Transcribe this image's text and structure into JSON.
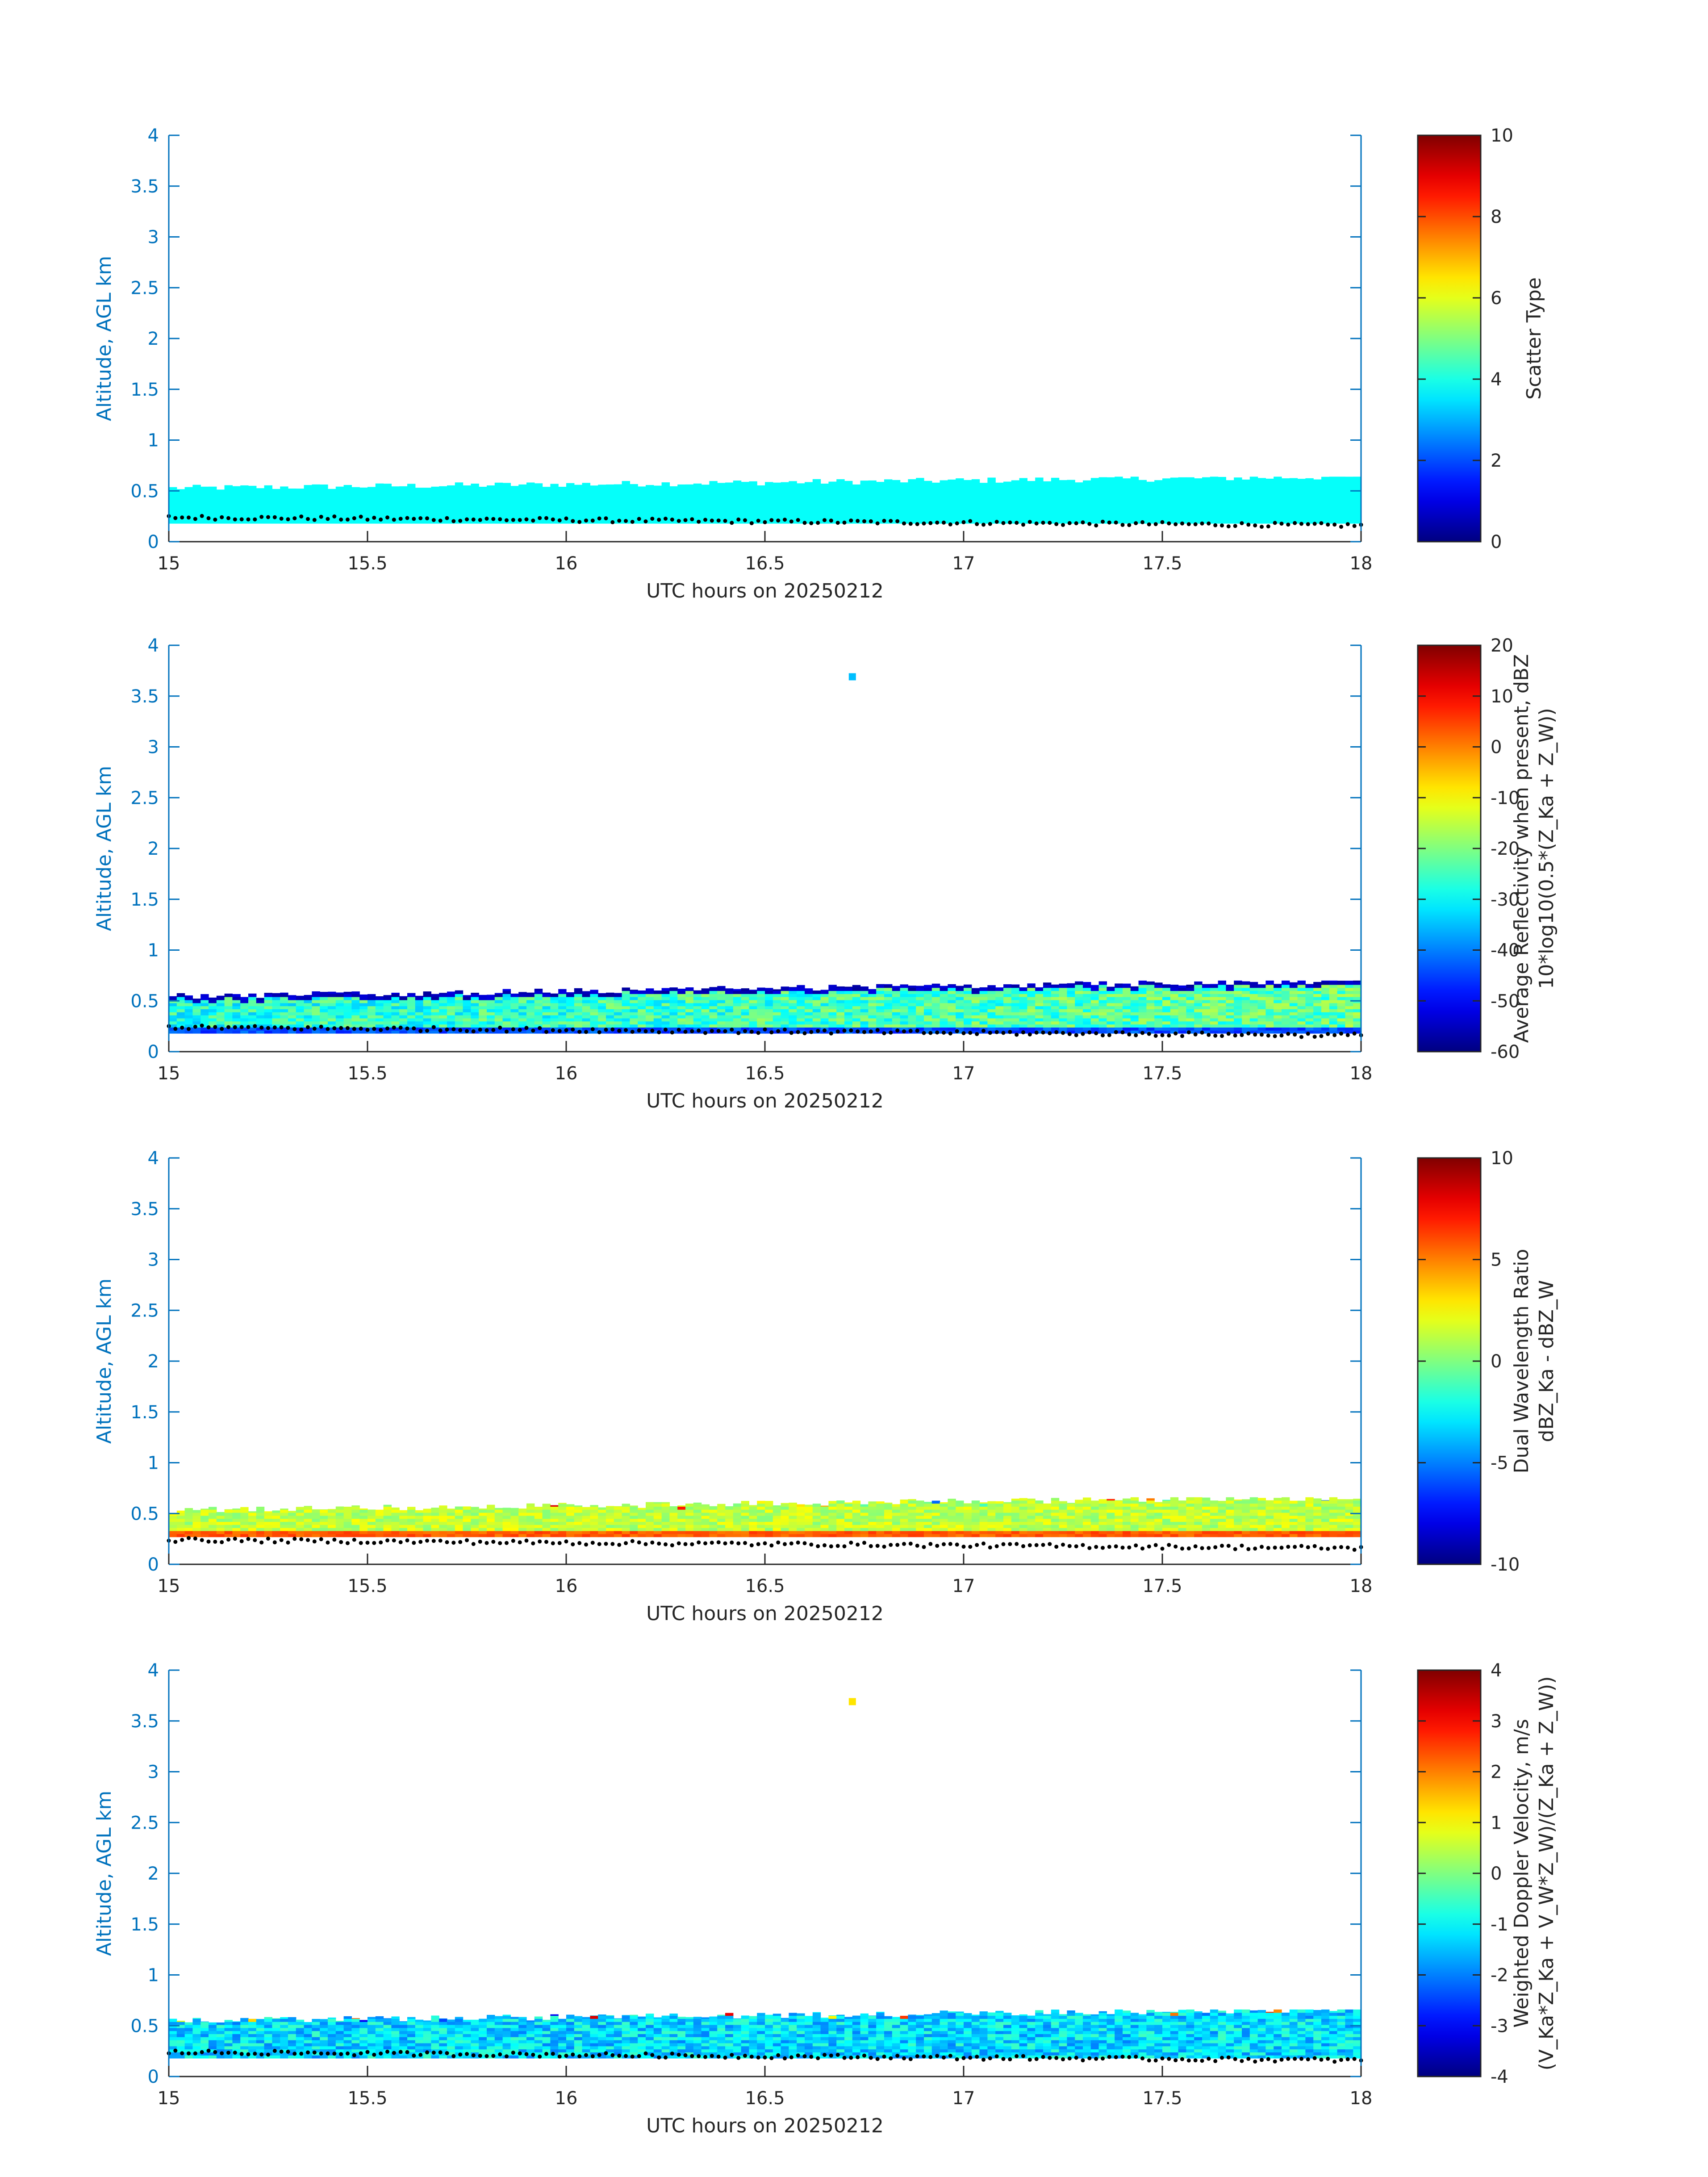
{
  "colors": {
    "axis_blue": "#0072BD",
    "tick_text_black": "#262626",
    "ground_dots": "#000000"
  },
  "colormap": "jet",
  "chart_data": [
    {
      "type": "heatmap",
      "title": "",
      "xlabel": "UTC hours on 20250212",
      "ylabel": "Altitude, AGL km",
      "xlim": [
        15,
        18
      ],
      "ylim": [
        0,
        4
      ],
      "xticks": [
        "15",
        "15.5",
        "16",
        "16.5",
        "17",
        "17.5",
        "18"
      ],
      "yticks": [
        "0",
        "0.5",
        "1",
        "1.5",
        "2",
        "2.5",
        "3",
        "3.5",
        "4"
      ],
      "colorbar": {
        "label_lines": [
          "Scatter Type"
        ],
        "clim": [
          0,
          10
        ],
        "ticks": [
          "0",
          "2",
          "4",
          "6",
          "8",
          "10"
        ]
      },
      "field": "scatter_type",
      "layer": {
        "base_km": 0.18,
        "top_km_range": [
          0.48,
          0.64
        ],
        "typical_value": 3.8
      },
      "isolated_echo": null
    },
    {
      "type": "heatmap",
      "title": "",
      "xlabel": "UTC hours on 20250212",
      "ylabel": "Altitude, AGL km",
      "xlim": [
        15,
        18
      ],
      "ylim": [
        0,
        4
      ],
      "xticks": [
        "15",
        "15.5",
        "16",
        "16.5",
        "17",
        "17.5",
        "18"
      ],
      "yticks": [
        "0",
        "0.5",
        "1",
        "1.5",
        "2",
        "2.5",
        "3",
        "3.5",
        "4"
      ],
      "colorbar": {
        "label_lines": [
          "Average Reflectivity when present, dBZ",
          "10*log10(0.5*(Z_Ka + Z_W))"
        ],
        "clim": [
          -60,
          20
        ],
        "ticks": [
          "-60",
          "-50",
          "-40",
          "-30",
          "-20",
          "-10",
          "0",
          "10",
          "20"
        ]
      },
      "field": "reflectivity",
      "layer": {
        "base_km": 0.18,
        "top_km_range": [
          0.48,
          0.7
        ],
        "top_edge_value": -55,
        "core_value_range": [
          -35,
          -20
        ]
      },
      "isolated_echo": {
        "x": 16.72,
        "y": 3.69,
        "value": -35
      }
    },
    {
      "type": "heatmap",
      "title": "",
      "xlabel": "UTC hours on 20250212",
      "ylabel": "Altitude, AGL km",
      "xlim": [
        15,
        18
      ],
      "ylim": [
        0,
        4
      ],
      "xticks": [
        "15",
        "15.5",
        "16",
        "16.5",
        "17",
        "17.5",
        "18"
      ],
      "yticks": [
        "0",
        "0.5",
        "1",
        "1.5",
        "2",
        "2.5",
        "3",
        "3.5",
        "4"
      ],
      "colorbar": {
        "label_lines": [
          "Dual Wavelength Ratio",
          "dBZ_Ka - dBZ_W"
        ],
        "clim": [
          -10,
          10
        ],
        "ticks": [
          "-10",
          "-5",
          "0",
          "5",
          "10"
        ]
      },
      "field": "dwr",
      "layer": {
        "base_km": 0.27,
        "top_km_range": [
          0.48,
          0.66
        ],
        "core_value_range": [
          0,
          2.5
        ],
        "bottom_stripe_value": 5
      },
      "isolated_echo": null
    },
    {
      "type": "heatmap",
      "title": "",
      "xlabel": "UTC hours on 20250212",
      "ylabel": "Altitude, AGL km",
      "xlim": [
        15,
        18
      ],
      "ylim": [
        0,
        4
      ],
      "xticks": [
        "15",
        "15.5",
        "16",
        "16.5",
        "17",
        "17.5",
        "18"
      ],
      "yticks": [
        "0",
        "0.5",
        "1",
        "1.5",
        "2",
        "2.5",
        "3",
        "3.5",
        "4"
      ],
      "colorbar": {
        "label_lines": [
          "Weighted Doppler Velocity, m/s",
          "(V_Ka*Z_Ka + V_W*Z_W)/(Z_Ka + Z_W))"
        ],
        "clim": [
          -4,
          4
        ],
        "ticks": [
          "-4",
          "-3",
          "-2",
          "-1",
          "0",
          "1",
          "2",
          "3",
          "4"
        ]
      },
      "field": "velocity",
      "layer": {
        "base_km": 0.18,
        "top_km_range": [
          0.5,
          0.66
        ],
        "core_value_range": [
          -2,
          -0.5
        ]
      },
      "isolated_echo": {
        "x": 16.72,
        "y": 3.69,
        "value": 1.2
      }
    }
  ],
  "ground_line": {
    "x_range": [
      15,
      18
    ],
    "y_start_km": 0.24,
    "y_end_km": 0.16
  }
}
